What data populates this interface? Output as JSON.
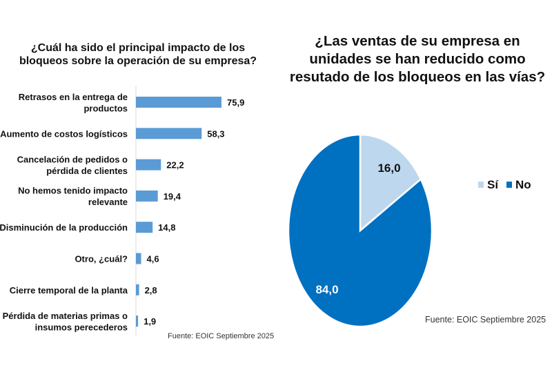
{
  "chart_data": [
    {
      "type": "bar",
      "orientation": "horizontal",
      "title": "¿Cuál ha sido el principal impacto de los bloqueos sobre la operación de su empresa?",
      "categories": [
        [
          "Retrasos en la entrega de",
          "productos"
        ],
        [
          "Aumento de costos logísticos"
        ],
        [
          "Cancelación de pedidos o",
          "pérdida de clientes"
        ],
        [
          "No hemos tenido impacto",
          "relevante"
        ],
        [
          "Disminución de la producción"
        ],
        [
          "Otro, ¿cuál?"
        ],
        [
          "Cierre temporal de la planta"
        ],
        [
          "Pérdida de materias primas o",
          "insumos perecederos"
        ]
      ],
      "values": [
        75.9,
        58.3,
        22.2,
        19.4,
        14.8,
        4.6,
        2.8,
        1.9
      ],
      "value_labels": [
        "75,9",
        "58,3",
        "22,2",
        "19,4",
        "14,8",
        "4,6",
        "2,8",
        "1,9"
      ],
      "xlabel": "",
      "ylabel": "",
      "xlim": [
        0,
        100
      ],
      "grid": false,
      "bar_color": "#5b9bd5",
      "source": "Fuente: EOIC Septiembre 2025"
    },
    {
      "type": "pie",
      "title": "¿Las ventas de su empresa en unidades se han reducido como resutado de los bloqueos en las vías?",
      "slices": [
        {
          "label": "Sí",
          "value": 16.0,
          "display": "16,0",
          "color": "#bdd7ee"
        },
        {
          "label": "No",
          "value": 84.0,
          "display": "84,0",
          "color": "#0070c0"
        }
      ],
      "legend": {
        "placement": "right",
        "entries": [
          "Sí",
          "No"
        ]
      },
      "source": "Fuente: EOIC Septiembre 2025"
    }
  ]
}
